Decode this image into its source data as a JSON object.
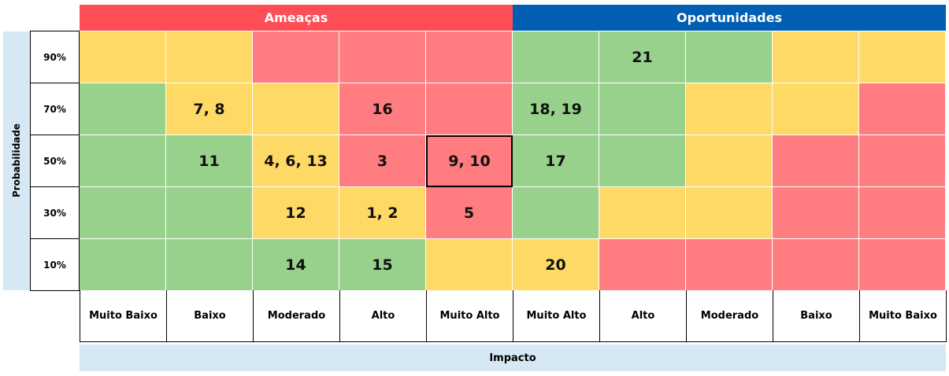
{
  "headers": {
    "threats": "Ameaças",
    "opportunities": "Oportunidades",
    "threats_color": "#ff4d55",
    "opportunities_color": "#005fb2"
  },
  "y_axis_label": "Probabilidade",
  "x_axis_label": "Impacto",
  "colors": {
    "G": "#97d18b",
    "Y": "#ffd966",
    "R": "#ff7c80"
  },
  "rows": [
    "90%",
    "70%",
    "50%",
    "30%",
    "10%"
  ],
  "columns": [
    "Muito Baixo",
    "Baixo",
    "Moderado",
    "Alto",
    "Muito Alto",
    "Muito Alto",
    "Alto",
    "Moderado",
    "Baixo",
    "Muito Baixo"
  ],
  "grid": [
    [
      "Y",
      "Y",
      "R",
      "R",
      "R",
      "G",
      "G",
      "G",
      "Y",
      "Y"
    ],
    [
      "G",
      "Y",
      "Y",
      "R",
      "R",
      "G",
      "G",
      "Y",
      "Y",
      "R"
    ],
    [
      "G",
      "G",
      "Y",
      "R",
      "R",
      "G",
      "G",
      "Y",
      "R",
      "R"
    ],
    [
      "G",
      "G",
      "Y",
      "Y",
      "R",
      "G",
      "Y",
      "Y",
      "R",
      "R"
    ],
    [
      "G",
      "G",
      "G",
      "G",
      "Y",
      "Y",
      "R",
      "R",
      "R",
      "R"
    ]
  ],
  "labels": [
    [
      "",
      "",
      "",
      "",
      "",
      "",
      "21",
      "",
      "",
      ""
    ],
    [
      "",
      "7, 8",
      "",
      "16",
      "",
      "18, 19",
      "",
      "",
      "",
      ""
    ],
    [
      "",
      "11",
      "4, 6, 13",
      "3",
      "9, 10",
      "17",
      "",
      "",
      "",
      ""
    ],
    [
      "",
      "",
      "12",
      "1, 2",
      "5",
      "",
      "",
      "",
      "",
      ""
    ],
    [
      "",
      "",
      "14",
      "15",
      "",
      "20",
      "",
      "",
      "",
      ""
    ]
  ],
  "highlighted_cell": {
    "row": 2,
    "col": 4
  }
}
